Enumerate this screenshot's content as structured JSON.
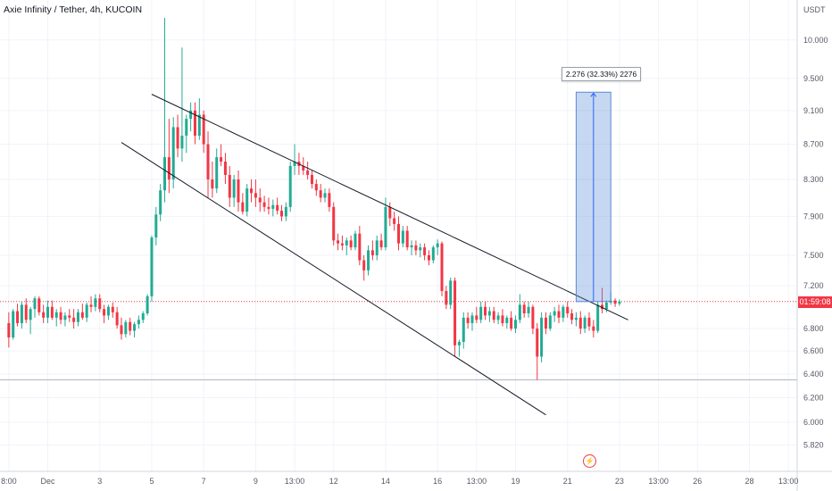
{
  "title": "Axie Infinity / Tether, 4h, KUCOIN",
  "colors": {
    "up": "#22ab94",
    "down": "#f23645",
    "measure": "#5b8bd6"
  },
  "current_price_label": "01:59:08",
  "measure_label": "2.276 (32.33%) 2276",
  "event_icon": "lightning-icon",
  "chart_data": {
    "type": "candlestick",
    "title": "Axie Infinity / Tether, 4h, KUCOIN",
    "y_unit": "USDT",
    "y_scale": "log",
    "ylim": [
      5.7,
      10.3
    ],
    "y_ticks": [
      {
        "v": 10.0,
        "label": "10.000"
      },
      {
        "v": 9.5,
        "label": "9.500"
      },
      {
        "v": 9.1,
        "label": "9.100"
      },
      {
        "v": 8.7,
        "label": "8.700"
      },
      {
        "v": 8.3,
        "label": "8.300"
      },
      {
        "v": 7.9,
        "label": "7.900"
      },
      {
        "v": 7.5,
        "label": "7.500"
      },
      {
        "v": 7.2,
        "label": "7.200"
      },
      {
        "v": 6.8,
        "label": "6.800"
      },
      {
        "v": 6.6,
        "label": "6.600"
      },
      {
        "v": 6.4,
        "label": "6.400"
      },
      {
        "v": 6.2,
        "label": "6.200"
      },
      {
        "v": 6.0,
        "label": "6.000"
      },
      {
        "v": 5.82,
        "label": "5.820"
      }
    ],
    "x_ticks": [
      {
        "i": 0,
        "label": "8:00"
      },
      {
        "i": 9,
        "label": "Dec"
      },
      {
        "i": 21,
        "label": "3"
      },
      {
        "i": 33,
        "label": "5"
      },
      {
        "i": 45,
        "label": "7"
      },
      {
        "i": 57,
        "label": "9"
      },
      {
        "i": 66,
        "label": "13:00"
      },
      {
        "i": 75,
        "label": "12"
      },
      {
        "i": 87,
        "label": "14"
      },
      {
        "i": 99,
        "label": "16"
      },
      {
        "i": 108,
        "label": "13:00"
      },
      {
        "i": 117,
        "label": "19"
      },
      {
        "i": 129,
        "label": "21"
      },
      {
        "i": 141,
        "label": "23"
      },
      {
        "i": 150,
        "label": "13:00"
      },
      {
        "i": 159,
        "label": "26"
      },
      {
        "i": 171,
        "label": "28"
      },
      {
        "i": 180,
        "label": "13:00"
      }
    ],
    "x_range": [
      -1,
      181
    ],
    "candles": [
      [
        6.85,
        6.95,
        6.63,
        6.72
      ],
      [
        6.72,
        6.98,
        6.7,
        6.96
      ],
      [
        6.96,
        7.03,
        6.82,
        6.85
      ],
      [
        6.85,
        7.05,
        6.8,
        7.02
      ],
      [
        7.02,
        7.08,
        6.85,
        6.88
      ],
      [
        6.88,
        7.0,
        6.75,
        6.98
      ],
      [
        6.98,
        7.1,
        6.9,
        7.08
      ],
      [
        7.08,
        7.1,
        6.92,
        6.95
      ],
      [
        6.95,
        7.02,
        6.85,
        6.9
      ],
      [
        6.9,
        7.06,
        6.85,
        7.0
      ],
      [
        7.0,
        7.06,
        6.88,
        6.9
      ],
      [
        6.9,
        6.98,
        6.82,
        6.95
      ],
      [
        6.95,
        7.0,
        6.84,
        6.88
      ],
      [
        6.88,
        6.95,
        6.82,
        6.92
      ],
      [
        6.92,
        6.98,
        6.86,
        6.9
      ],
      [
        6.9,
        6.98,
        6.8,
        6.86
      ],
      [
        6.86,
        6.98,
        6.82,
        6.95
      ],
      [
        6.95,
        7.03,
        6.88,
        6.9
      ],
      [
        6.9,
        7.04,
        6.86,
        7.02
      ],
      [
        7.02,
        7.1,
        6.95,
        7.0
      ],
      [
        7.0,
        7.12,
        6.96,
        7.08
      ],
      [
        7.08,
        7.12,
        6.95,
        6.98
      ],
      [
        6.98,
        7.02,
        6.85,
        6.92
      ],
      [
        6.92,
        7.02,
        6.88,
        7.0
      ],
      [
        7.0,
        7.04,
        6.9,
        6.95
      ],
      [
        6.95,
        7.0,
        6.8,
        6.83
      ],
      [
        6.83,
        6.9,
        6.7,
        6.75
      ],
      [
        6.75,
        6.88,
        6.72,
        6.86
      ],
      [
        6.86,
        6.9,
        6.74,
        6.78
      ],
      [
        6.78,
        6.86,
        6.72,
        6.84
      ],
      [
        6.84,
        6.92,
        6.8,
        6.88
      ],
      [
        6.88,
        6.96,
        6.85,
        6.94
      ],
      [
        6.94,
        7.12,
        6.92,
        7.1
      ],
      [
        7.1,
        7.7,
        7.05,
        7.68
      ],
      [
        7.68,
        8.0,
        7.6,
        7.92
      ],
      [
        7.92,
        8.25,
        7.85,
        8.18
      ],
      [
        8.18,
        10.3,
        8.05,
        8.55
      ],
      [
        8.55,
        9.0,
        8.15,
        8.3
      ],
      [
        8.3,
        9.02,
        8.2,
        8.9
      ],
      [
        8.9,
        9.05,
        8.55,
        8.65
      ],
      [
        8.65,
        9.9,
        8.5,
        8.8
      ],
      [
        8.8,
        9.05,
        8.6,
        9.0
      ],
      [
        9.0,
        9.2,
        8.85,
        9.1
      ],
      [
        9.1,
        9.2,
        8.7,
        8.8
      ],
      [
        8.8,
        9.25,
        8.75,
        9.05
      ],
      [
        9.05,
        9.1,
        8.6,
        8.7
      ],
      [
        8.7,
        8.85,
        8.1,
        8.3
      ],
      [
        8.3,
        8.5,
        8.1,
        8.2
      ],
      [
        8.2,
        8.65,
        8.15,
        8.55
      ],
      [
        8.55,
        8.7,
        8.45,
        8.5
      ],
      [
        8.5,
        8.6,
        8.25,
        8.35
      ],
      [
        8.35,
        8.45,
        8.0,
        8.1
      ],
      [
        8.1,
        8.35,
        8.0,
        8.3
      ],
      [
        8.3,
        8.4,
        7.95,
        8.05
      ],
      [
        8.05,
        8.15,
        7.92,
        7.95
      ],
      [
        7.95,
        8.25,
        7.9,
        8.2
      ],
      [
        8.2,
        8.3,
        8.05,
        8.15
      ],
      [
        8.15,
        8.3,
        8.0,
        8.1
      ],
      [
        8.1,
        8.2,
        7.95,
        8.05
      ],
      [
        8.05,
        8.12,
        7.95,
        8.0
      ],
      [
        8.0,
        8.1,
        7.92,
        7.98
      ],
      [
        7.98,
        8.08,
        7.9,
        8.02
      ],
      [
        8.02,
        8.1,
        7.92,
        7.96
      ],
      [
        7.96,
        8.02,
        7.85,
        7.9
      ],
      [
        7.9,
        8.05,
        7.85,
        8.0
      ],
      [
        8.0,
        8.5,
        7.95,
        8.45
      ],
      [
        8.45,
        8.7,
        8.35,
        8.5
      ],
      [
        8.5,
        8.6,
        8.35,
        8.45
      ],
      [
        8.45,
        8.55,
        8.35,
        8.4
      ],
      [
        8.4,
        8.5,
        8.3,
        8.35
      ],
      [
        8.35,
        8.4,
        8.2,
        8.25
      ],
      [
        8.25,
        8.3,
        8.12,
        8.18
      ],
      [
        8.18,
        8.25,
        8.05,
        8.1
      ],
      [
        8.1,
        8.2,
        8.05,
        8.15
      ],
      [
        8.15,
        8.2,
        7.95,
        8.0
      ],
      [
        8.0,
        8.05,
        7.6,
        7.65
      ],
      [
        7.65,
        7.72,
        7.55,
        7.62
      ],
      [
        7.62,
        7.7,
        7.55,
        7.6
      ],
      [
        7.6,
        7.68,
        7.5,
        7.65
      ],
      [
        7.65,
        7.7,
        7.55,
        7.58
      ],
      [
        7.58,
        7.75,
        7.55,
        7.72
      ],
      [
        7.72,
        7.8,
        7.4,
        7.45
      ],
      [
        7.45,
        7.5,
        7.25,
        7.35
      ],
      [
        7.35,
        7.6,
        7.3,
        7.55
      ],
      [
        7.55,
        7.65,
        7.45,
        7.5
      ],
      [
        7.5,
        7.7,
        7.45,
        7.65
      ],
      [
        7.65,
        7.72,
        7.55,
        7.58
      ],
      [
        7.58,
        8.1,
        7.55,
        8.0
      ],
      [
        8.0,
        8.05,
        7.8,
        7.88
      ],
      [
        7.88,
        7.95,
        7.75,
        7.82
      ],
      [
        7.82,
        7.9,
        7.55,
        7.62
      ],
      [
        7.62,
        7.8,
        7.58,
        7.75
      ],
      [
        7.75,
        7.8,
        7.55,
        7.58
      ],
      [
        7.58,
        7.65,
        7.5,
        7.6
      ],
      [
        7.6,
        7.65,
        7.5,
        7.55
      ],
      [
        7.55,
        7.62,
        7.48,
        7.58
      ],
      [
        7.58,
        7.62,
        7.45,
        7.5
      ],
      [
        7.5,
        7.55,
        7.4,
        7.45
      ],
      [
        7.45,
        7.6,
        7.42,
        7.58
      ],
      [
        7.58,
        7.66,
        7.5,
        7.62
      ],
      [
        7.62,
        7.64,
        7.1,
        7.15
      ],
      [
        7.15,
        7.2,
        6.98,
        7.02
      ],
      [
        7.02,
        7.28,
        6.98,
        7.25
      ],
      [
        7.25,
        7.28,
        6.55,
        6.65
      ],
      [
        6.65,
        6.7,
        6.55,
        6.68
      ],
      [
        6.68,
        6.95,
        6.62,
        6.9
      ],
      [
        6.9,
        6.95,
        6.8,
        6.85
      ],
      [
        6.85,
        6.95,
        6.78,
        6.92
      ],
      [
        6.92,
        7.0,
        6.85,
        6.88
      ],
      [
        6.88,
        7.05,
        6.85,
        7.0
      ],
      [
        7.0,
        7.05,
        6.88,
        6.92
      ],
      [
        6.92,
        7.0,
        6.86,
        6.96
      ],
      [
        6.96,
        7.0,
        6.85,
        6.88
      ],
      [
        6.88,
        6.95,
        6.84,
        6.92
      ],
      [
        6.92,
        6.98,
        6.82,
        6.85
      ],
      [
        6.85,
        6.92,
        6.8,
        6.9
      ],
      [
        6.9,
        6.96,
        6.78,
        6.8
      ],
      [
        6.8,
        6.92,
        6.76,
        6.88
      ],
      [
        6.88,
        7.12,
        6.85,
        7.02
      ],
      [
        7.02,
        7.05,
        6.9,
        6.94
      ],
      [
        6.94,
        7.05,
        6.9,
        7.0
      ],
      [
        7.0,
        7.02,
        6.75,
        6.8
      ],
      [
        6.8,
        6.85,
        6.35,
        6.55
      ],
      [
        6.55,
        6.95,
        6.5,
        6.9
      ],
      [
        6.9,
        6.95,
        6.75,
        6.8
      ],
      [
        6.8,
        6.95,
        6.78,
        6.92
      ],
      [
        6.92,
        7.0,
        6.86,
        6.96
      ],
      [
        6.96,
        7.02,
        6.85,
        6.9
      ],
      [
        6.9,
        7.02,
        6.86,
        7.0
      ],
      [
        7.0,
        7.05,
        6.9,
        6.94
      ],
      [
        6.94,
        6.98,
        6.84,
        6.88
      ],
      [
        6.88,
        6.95,
        6.82,
        6.9
      ],
      [
        6.9,
        6.96,
        6.75,
        6.8
      ],
      [
        6.8,
        6.92,
        6.76,
        6.9
      ],
      [
        6.9,
        6.95,
        6.78,
        6.82
      ],
      [
        6.82,
        6.88,
        6.72,
        6.78
      ],
      [
        6.78,
        7.05,
        6.76,
        7.02
      ],
      [
        7.02,
        7.18,
        6.94,
        6.98
      ],
      [
        6.98,
        7.06,
        6.95,
        7.04
      ],
      [
        7.04,
        7.14,
        7.02,
        7.06
      ],
      [
        7.06,
        7.08,
        7.0,
        7.03
      ],
      [
        7.03,
        7.07,
        7.01,
        7.05
      ]
    ],
    "trendlines": [
      {
        "from": [
          33,
          9.3
        ],
        "to": [
          143,
          6.88
        ]
      },
      {
        "from": [
          26,
          8.72
        ],
        "to": [
          124,
          6.06
        ]
      }
    ],
    "horizontal_lines": [
      {
        "price": 7.05,
        "style": "dotted"
      },
      {
        "price": 6.35,
        "style": "solid"
      }
    ],
    "measure": {
      "i_from": 131,
      "i_to": 139,
      "p_from": 7.05,
      "p_to": 9.326
    },
    "current_price": 7.05,
    "event_marker_index": 134
  }
}
